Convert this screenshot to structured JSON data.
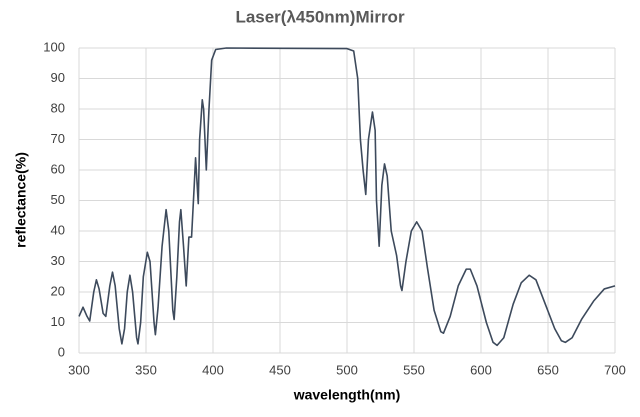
{
  "chart_data": {
    "type": "line",
    "title": "Laser(λ450nm)Mirror",
    "x_label": "wavelength(nm)",
    "y_label": "reflectance(%)",
    "x": [
      300,
      303,
      306,
      308,
      311,
      313,
      315,
      318,
      320,
      323,
      325,
      327,
      330,
      332,
      334,
      336,
      338,
      340,
      343,
      344,
      346,
      348,
      351,
      353,
      356,
      357,
      359,
      362,
      365,
      367,
      370,
      371,
      373,
      375,
      376,
      378,
      380,
      382,
      384,
      386,
      387,
      389,
      390,
      392,
      393,
      395,
      397,
      399,
      402,
      410,
      500,
      505,
      508,
      510,
      512,
      514,
      516,
      519,
      521,
      522,
      524,
      526,
      528,
      530,
      533,
      537,
      540,
      541,
      544,
      548,
      552,
      556,
      560,
      565,
      570,
      572,
      577,
      583,
      589,
      592,
      597,
      604,
      609,
      612,
      617,
      624,
      630,
      636,
      641,
      648,
      655,
      660,
      663,
      668,
      675,
      684,
      692,
      700
    ],
    "series": [
      {
        "name": "reflectance",
        "color": "#3d4a5c",
        "values": [
          12,
          15,
          12,
          10.5,
          20,
          24,
          21,
          13,
          12,
          22,
          26.5,
          22,
          8,
          3,
          8,
          20,
          25.5,
          20,
          5,
          3,
          10,
          25,
          33,
          30,
          10,
          6,
          15,
          35,
          47,
          40,
          14,
          11,
          25,
          43,
          47,
          35,
          22,
          38,
          38,
          55,
          64,
          49,
          70,
          83,
          80,
          60,
          80,
          96,
          99.5,
          100,
          99.8,
          99,
          90,
          70,
          60,
          52,
          70,
          79,
          73,
          50,
          35,
          55,
          62,
          58,
          40,
          32,
          22,
          20.5,
          30,
          40,
          43,
          40,
          28,
          14,
          7,
          6.5,
          12,
          22,
          27.5,
          27.5,
          22,
          10,
          3.5,
          2.5,
          5,
          16,
          23,
          25.5,
          24,
          16,
          8,
          4,
          3.5,
          5,
          11,
          17,
          21,
          22
        ]
      }
    ],
    "xlim": [
      300,
      700
    ],
    "xticks": [
      300,
      350,
      400,
      450,
      500,
      550,
      600,
      650,
      700
    ],
    "ylim": [
      0,
      100
    ],
    "yticks": [
      0,
      10,
      20,
      30,
      40,
      50,
      60,
      70,
      80,
      90,
      100
    ],
    "grid": true
  }
}
